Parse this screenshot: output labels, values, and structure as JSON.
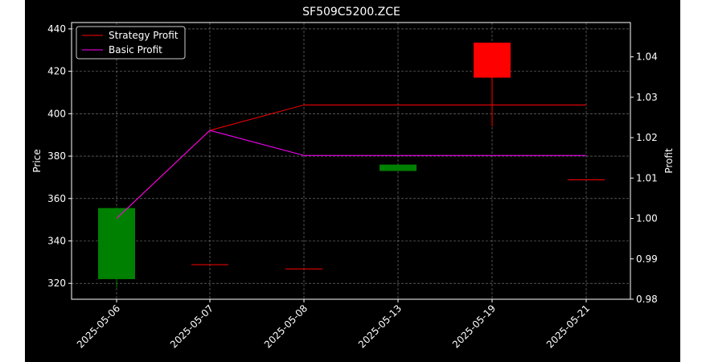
{
  "chart_data": {
    "type": "candlestick",
    "title": "SF509C5200.ZCE",
    "ylabel_left": "Price",
    "ylabel_right": "Profit",
    "categories": [
      "2025-05-06",
      "2025-05-07",
      "2025-05-08",
      "2025-05-13",
      "2025-05-19",
      "2025-05-21"
    ],
    "ylim_left": [
      312.5,
      443
    ],
    "yticks_left": [
      320,
      340,
      360,
      380,
      400,
      420,
      440
    ],
    "ylim_right": [
      0.98,
      1.0485
    ],
    "yticks_right": [
      0.98,
      0.99,
      1.0,
      1.01,
      1.02,
      1.03,
      1.04
    ],
    "candles": [
      {
        "date": "2025-05-06",
        "open": 322,
        "high": 355.5,
        "low": 318,
        "close": 355.5
      },
      {
        "date": "2025-05-07",
        "open": 329,
        "high": 329,
        "low": 329,
        "close": 329
      },
      {
        "date": "2025-05-08",
        "open": 327,
        "high": 327,
        "low": 327,
        "close": 327
      },
      {
        "date": "2025-05-13",
        "open": 373,
        "high": 376,
        "low": 373,
        "close": 376
      },
      {
        "date": "2025-05-19",
        "open": 433.5,
        "high": 433.5,
        "low": 394,
        "close": 417
      },
      {
        "date": "2025-05-21",
        "open": 369,
        "high": 369,
        "low": 369,
        "close": 369
      }
    ],
    "series": [
      {
        "name": "Strategy Profit",
        "color": "#ff0000",
        "values": [
          1.0,
          1.0218,
          1.0281,
          1.0281,
          1.0281,
          1.0281
        ]
      },
      {
        "name": "Basic Profit",
        "color": "#ff00ff",
        "values": [
          1.0,
          1.0218,
          1.0156,
          1.0156,
          1.0156,
          1.0156
        ]
      }
    ],
    "colors": {
      "up": "#008000",
      "down": "#ff0000",
      "flat": "#ff0000",
      "background": "#000000",
      "grid": "#b0b0b0"
    },
    "grid": true,
    "legend_position": "top-left"
  }
}
